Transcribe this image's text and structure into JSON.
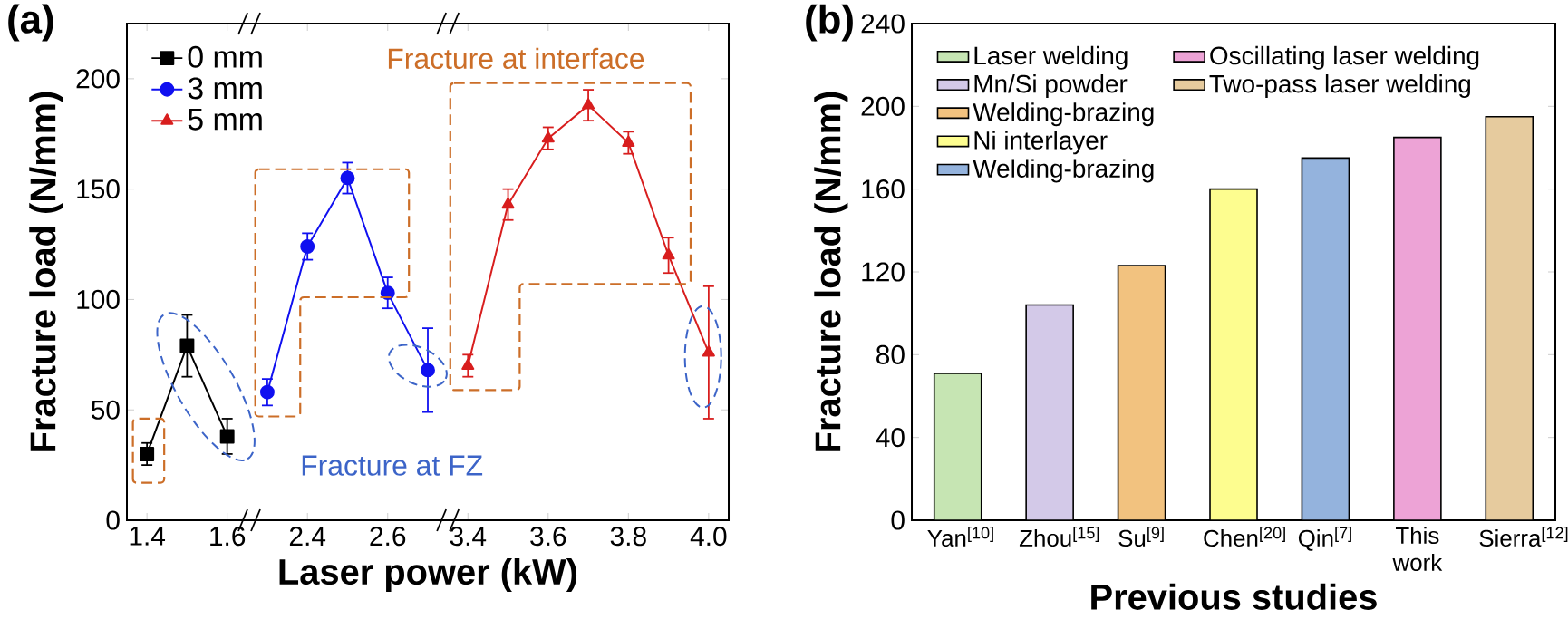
{
  "chart_data": [
    {
      "type": "line",
      "title": "(a)",
      "xlabel": "Laser power (kW)",
      "ylabel": "Fracture load (N/mm)",
      "categories": [
        "1.4",
        null,
        "1.6",
        null,
        "2.4",
        null,
        "2.6",
        null,
        "3.4",
        null,
        "3.6",
        null,
        "3.8",
        null,
        "4.0"
      ],
      "ylim": [
        0,
        225
      ],
      "yticks": [
        0,
        50,
        100,
        150,
        200
      ],
      "legend": "top left",
      "annotations": [
        "Fracture at interface",
        "Fracture at FZ"
      ],
      "series": [
        {
          "name": "0 mm",
          "color": "#000000",
          "marker": "square",
          "values": [
            30,
            79,
            38,
            null,
            null,
            null,
            null,
            null,
            null,
            null,
            null,
            null,
            null,
            null,
            null
          ],
          "errors": [
            5,
            14,
            8,
            null,
            null,
            null,
            null,
            null,
            null,
            null,
            null,
            null,
            null,
            null,
            null
          ]
        },
        {
          "name": "3 mm",
          "color": "#1010f0",
          "marker": "circle",
          "values": [
            null,
            null,
            null,
            58,
            124,
            155,
            103,
            68,
            null,
            null,
            null,
            null,
            null,
            null,
            null
          ],
          "errors": [
            null,
            null,
            null,
            6,
            6,
            7,
            7,
            19,
            null,
            null,
            null,
            null,
            null,
            null,
            null
          ]
        },
        {
          "name": "5 mm",
          "color": "#d81e1e",
          "marker": "triangle",
          "values": [
            null,
            null,
            null,
            null,
            null,
            null,
            null,
            null,
            70,
            143,
            173,
            188,
            171,
            120,
            76
          ],
          "errors": [
            null,
            null,
            null,
            null,
            null,
            null,
            null,
            null,
            5,
            7,
            5,
            7,
            5,
            8,
            30
          ]
        }
      ]
    },
    {
      "type": "bar",
      "title": "(b)",
      "xlabel": "Previous studies",
      "ylabel": "Fracture load (N/mm)",
      "categories": [
        "Yan$^{[10]}$",
        "Zhou$^{[15]}$",
        "Su$^{[9]}$",
        "Chen$^{[20]}$",
        "Qin$^{[7]}$",
        "This work",
        "Sierra$^{[12]}$"
      ],
      "ylim": [
        0,
        240
      ],
      "yticks": [
        0,
        40,
        80,
        120,
        160,
        200,
        240
      ],
      "legend": "top left",
      "series": [
        {
          "name": "Laser welding",
          "color": "#c6e5b3",
          "values": [
            71,
            null,
            null,
            null,
            null,
            null,
            null
          ]
        },
        {
          "name": "Mn/Si powder",
          "color": "#d3c9e8",
          "values": [
            null,
            104,
            null,
            null,
            null,
            null,
            null
          ]
        },
        {
          "name": "Welding-brazing",
          "color": "#f2c27f",
          "values": [
            null,
            null,
            123,
            null,
            null,
            null,
            null
          ]
        },
        {
          "name": "Ni interlayer",
          "color": "#fdfd8f",
          "values": [
            null,
            null,
            null,
            160,
            null,
            null,
            null
          ]
        },
        {
          "name": "Welding-brazing",
          "color": "#94b3dd",
          "values": [
            null,
            null,
            null,
            null,
            175,
            null,
            null
          ]
        },
        {
          "name": "Oscillating laser welding",
          "color": "#eda3d6",
          "values": [
            null,
            null,
            null,
            null,
            null,
            185,
            null
          ]
        },
        {
          "name": "Two-pass laser welding",
          "color": "#e6cb9e",
          "values": [
            null,
            null,
            null,
            null,
            null,
            null,
            195
          ]
        }
      ]
    }
  ]
}
